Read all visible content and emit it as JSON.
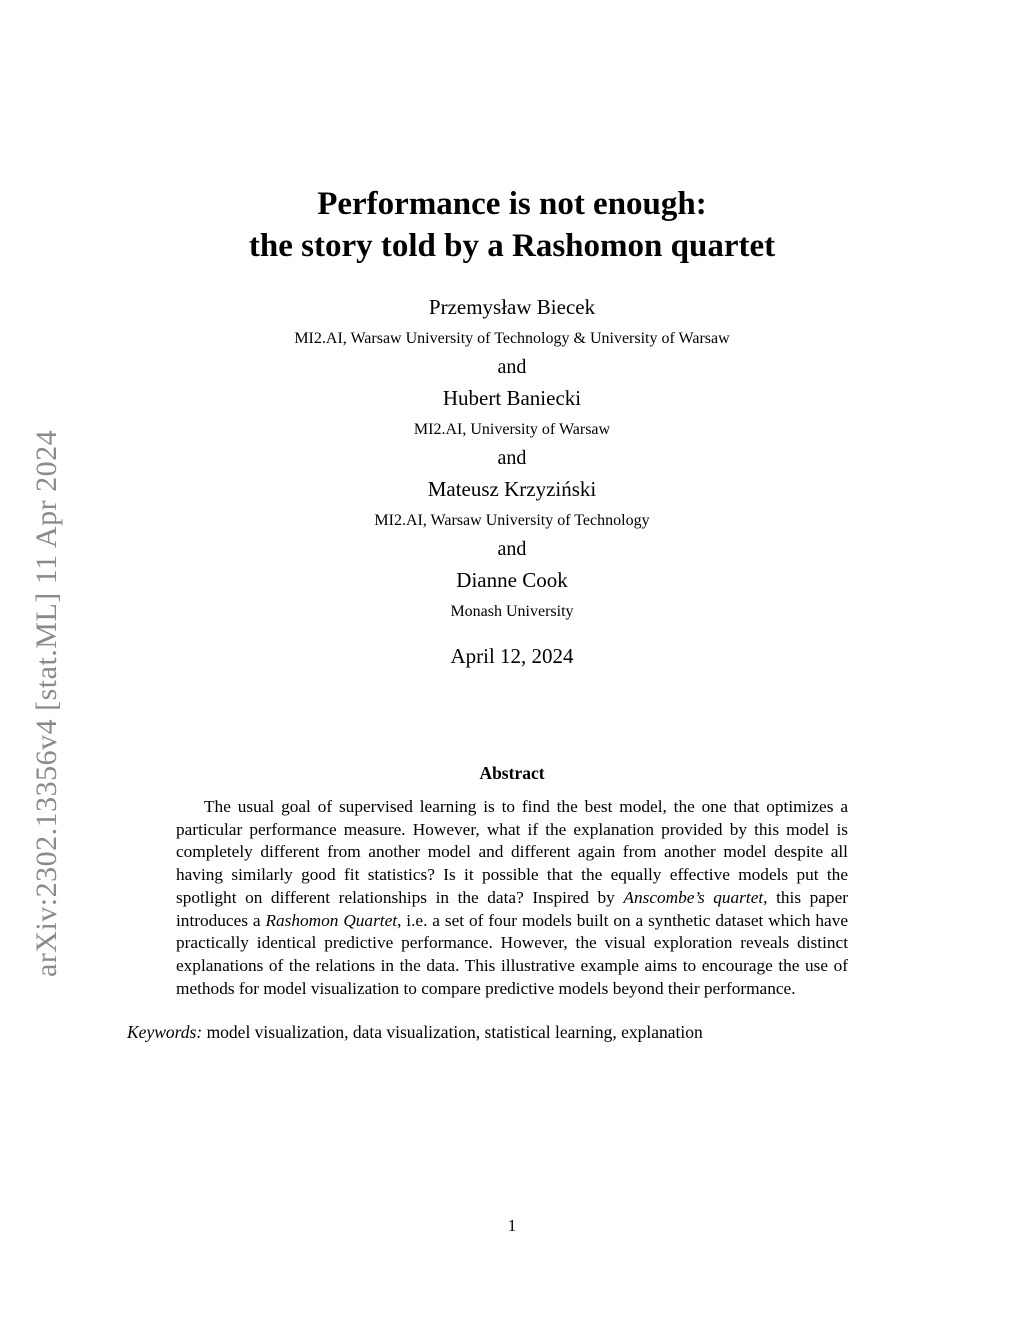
{
  "stamp": {
    "text": "arXiv:2302.13356v4  [stat.ML]  11 Apr 2024",
    "color": "#8a8a8a"
  },
  "title": {
    "line1": "Performance is not enough:",
    "line2": "the story told by a Rashomon quartet"
  },
  "byline": {
    "separator": "and"
  },
  "authors": [
    {
      "name": "Przemysław Biecek",
      "affiliation": "MI2.AI, Warsaw University of Technology & University of Warsaw"
    },
    {
      "name": "Hubert Baniecki",
      "affiliation": "MI2.AI, University of Warsaw"
    },
    {
      "name": "Mateusz Krzyziński",
      "affiliation": "MI2.AI, Warsaw University of Technology"
    },
    {
      "name": "Dianne Cook",
      "affiliation": "Monash University"
    }
  ],
  "date": "April 12, 2024",
  "abstract": {
    "heading": "Abstract",
    "part1": "The usual goal of supervised learning is to find the best model, the one that optimizes a particular performance measure. However, what if the explanation provided by this model is completely different from another model and different again from another model despite all having similarly good fit statistics? Is it possible that the equally effective models put the spotlight on different relationships in the data? Inspired by ",
    "italic1": "Anscombe’s quartet",
    "part2": ", this paper introduces a ",
    "italic2": "Rashomon Quartet",
    "part3": ", i.e. a set of four models built on a synthetic dataset which have practically identical predictive performance. However, the visual exploration reveals distinct explanations of the relations in the data. This illustrative example aims to encourage the use of methods for model visualization to compare predictive models beyond their performance."
  },
  "keywords": {
    "label": "Keywords:",
    "list": " model visualization, data visualization, statistical learning, explanation"
  },
  "page_number": "1"
}
